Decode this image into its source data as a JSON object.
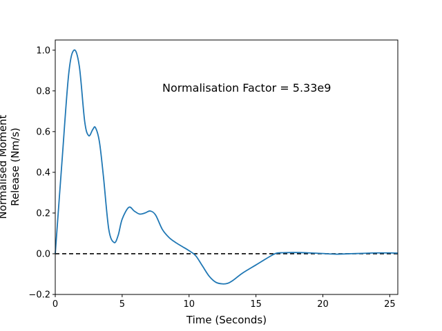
{
  "chart_data": {
    "type": "line",
    "title": "",
    "xlabel": "Time (Seconds)",
    "ylabel_lines": [
      "Normalised Moment",
      "Release (Nm/s)"
    ],
    "xlim": [
      0,
      25.6
    ],
    "ylim": [
      -0.2,
      1.05
    ],
    "xticks": [
      0,
      5,
      10,
      15,
      20,
      25
    ],
    "yticks": [
      -0.2,
      0.0,
      0.2,
      0.4,
      0.6,
      0.8,
      1.0
    ],
    "xtick_labels": [
      "0",
      "5",
      "10",
      "15",
      "20",
      "25"
    ],
    "ytick_labels": [
      "−0.2",
      "0.0",
      "0.2",
      "0.4",
      "0.6",
      "0.8",
      "1.0"
    ],
    "grid": false,
    "annotation": "Normalisation Factor = 5.33e9",
    "series": [
      {
        "color": "#1f77b4",
        "x": [
          0,
          0.5,
          1.0,
          1.4,
          1.8,
          2.2,
          2.5,
          2.8,
          3.0,
          3.3,
          3.6,
          4.0,
          4.4,
          4.7,
          5.0,
          5.5,
          5.9,
          6.3,
          6.7,
          7.1,
          7.5,
          8.0,
          8.5,
          9.0,
          9.5,
          10.0,
          10.5,
          11.0,
          11.5,
          12.0,
          12.5,
          12.9,
          13.3,
          14.0,
          15.0,
          16.0,
          16.5,
          17.0,
          18.0,
          19.0,
          20.0,
          21.0,
          22.0,
          23.0,
          24.0,
          25.0,
          25.6
        ],
        "y": [
          0.0,
          0.45,
          0.88,
          1.0,
          0.92,
          0.65,
          0.58,
          0.61,
          0.62,
          0.55,
          0.38,
          0.12,
          0.055,
          0.09,
          0.17,
          0.228,
          0.21,
          0.195,
          0.2,
          0.21,
          0.19,
          0.12,
          0.08,
          0.055,
          0.035,
          0.015,
          -0.01,
          -0.06,
          -0.11,
          -0.14,
          -0.148,
          -0.145,
          -0.13,
          -0.095,
          -0.055,
          -0.015,
          0.002,
          0.005,
          0.006,
          0.004,
          0.001,
          -0.002,
          0.0,
          0.002,
          0.004,
          0.004,
          0.003
        ]
      }
    ],
    "reference_line": {
      "y": 0.0,
      "style": "dashed",
      "color": "#000000"
    }
  }
}
